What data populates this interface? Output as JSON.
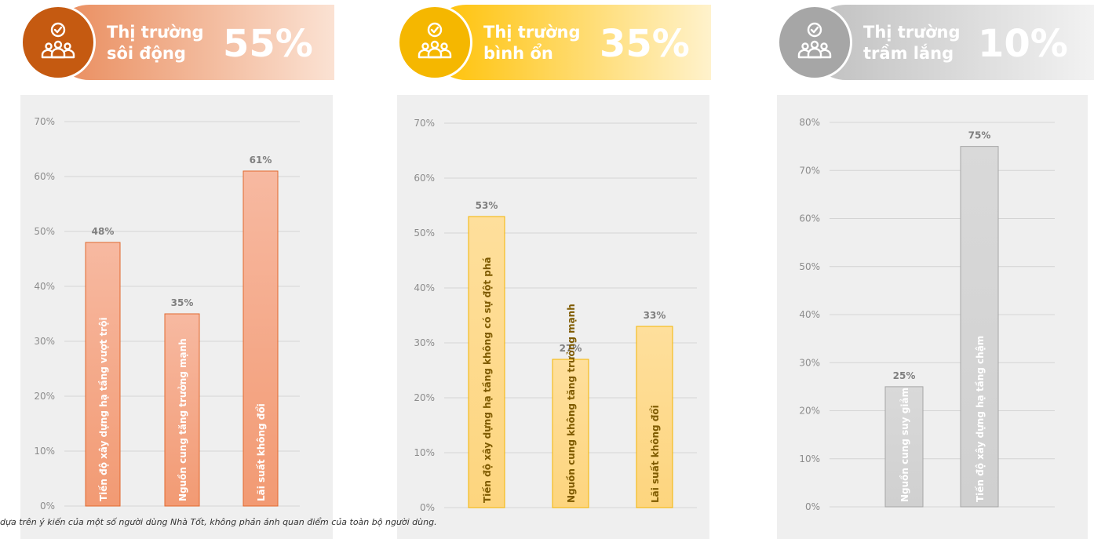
{
  "panels": [
    {
      "title": "Thị trường\nsôi động",
      "percent": "55%",
      "colors": {
        "circle": "#c55a11",
        "header_start": "#e98a5a",
        "header_end": "#fbe2d3",
        "bar_top": "#f7b9a1",
        "bar_bottom": "#f29a73",
        "bar_stroke": "#e2692f",
        "label": "#ffffff",
        "value": "#7f7f7f"
      }
    },
    {
      "title": "Thị trường\nbình ổn",
      "percent": "35%",
      "colors": {
        "circle": "#f5b700",
        "header_start": "#ffc000",
        "header_end": "#fff2cc",
        "bar_top": "#fedf9c",
        "bar_bottom": "#fdd57e",
        "bar_stroke": "#f4b400",
        "label": "#7f5b00",
        "value": "#7f7f7f"
      }
    },
    {
      "title": "Thị trường\ntrầm lắng",
      "percent": "10%",
      "colors": {
        "circle": "#a6a6a6",
        "header_start": "#bfbfbf",
        "header_end": "#f2f2f2",
        "bar_top": "#d9d9d9",
        "bar_bottom": "#d0d0d0",
        "bar_stroke": "#a6a6a6",
        "label": "#ffffff",
        "value": "#7f7f7f"
      }
    }
  ],
  "chart_data": [
    {
      "type": "bar",
      "categories": [
        "Tiến độ xây dựng hạ tầng vượt trội",
        "Nguồn cung tăng trưởng mạnh",
        "Lãi suất không đổi"
      ],
      "values": [
        48,
        35,
        61
      ],
      "value_labels": [
        "48%",
        "35%",
        "61%"
      ],
      "ylim": [
        0,
        70
      ],
      "yticks": [
        "0%",
        "10%",
        "20%",
        "30%",
        "40%",
        "50%",
        "60%",
        "70%"
      ],
      "grid": true
    },
    {
      "type": "bar",
      "categories": [
        "Tiến độ xây dựng hạ tầng không có sự đột phá",
        "Nguồn cung không tăng trưởng mạnh",
        "Lãi suất không đổi"
      ],
      "values": [
        53,
        27,
        33
      ],
      "value_labels": [
        "53%",
        "27%",
        "33%"
      ],
      "ylim": [
        0,
        70
      ],
      "yticks": [
        "0%",
        "10%",
        "20%",
        "30%",
        "40%",
        "50%",
        "60%",
        "70%"
      ],
      "grid": true
    },
    {
      "type": "bar",
      "categories": [
        "Nguồn cung suy giảm",
        "Tiến độ xây dựng hạ tầng chậm"
      ],
      "values": [
        25,
        75
      ],
      "value_labels": [
        "25%",
        "75%"
      ],
      "ylim": [
        0,
        80
      ],
      "yticks": [
        "0%",
        "10%",
        "20%",
        "30%",
        "40%",
        "50%",
        "60%",
        "70%",
        "80%"
      ],
      "grid": true
    }
  ],
  "footnote": "dựa trên ý kiến của một số người dùng Nhà Tốt, không phản ánh quan điểm của toàn bộ người dùng."
}
